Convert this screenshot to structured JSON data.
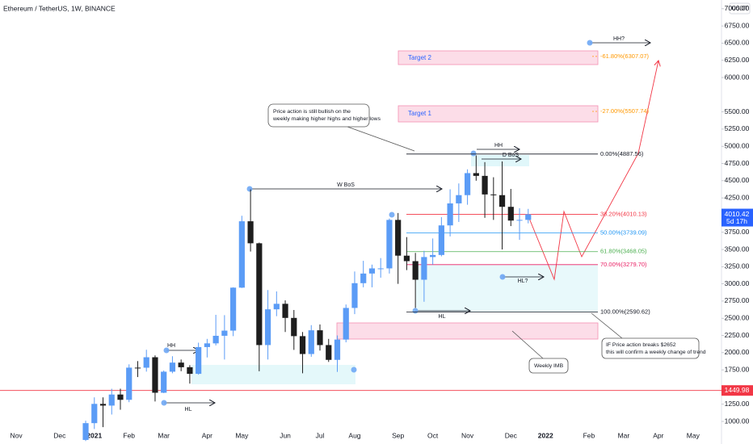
{
  "chart_data": {
    "type": "candlestick",
    "title": "Ethereum / TetherUS, 1W, BINANCE",
    "currency": "USDT",
    "categories": [
      null,
      "Nov",
      null,
      null,
      null,
      null,
      "Dec",
      null,
      null,
      null,
      "2021",
      null,
      null,
      null,
      "Feb",
      null,
      null,
      null,
      "Mar",
      null,
      null,
      null,
      null,
      "Apr",
      null,
      null,
      null,
      "May",
      null,
      null,
      null,
      null,
      "Jun",
      null,
      null,
      null,
      "Jul",
      null,
      null,
      null,
      "Aug",
      null,
      null,
      null,
      null,
      "Sep",
      null,
      null,
      null,
      "Oct",
      null,
      null,
      null,
      "Nov",
      null,
      null,
      null,
      null,
      "Dec",
      null,
      null,
      null,
      "2022",
      null,
      null,
      null,
      null,
      "Feb",
      null,
      null,
      null,
      "Mar",
      null,
      null,
      null,
      "Apr",
      null,
      null,
      null,
      "May",
      null,
      null,
      null
    ],
    "open": [
      null,
      null,
      null,
      null,
      null,
      null,
      null,
      null,
      null,
      731,
      975,
      1255,
      1230,
      1391,
      1314,
      1782,
      1781,
      1933,
      1417,
      1723,
      1855,
      1788,
      1692,
      2081,
      2135,
      2245,
      2320,
      2945,
      3910,
      3590,
      2110,
      2630,
      2710,
      2505,
      2240,
      1980,
      2325,
      2110,
      1895,
      2190,
      2650,
      3010,
      3150,
      3225,
      3225,
      3930,
      3410,
      3330,
      3060,
      3390,
      3420,
      3850,
      4170,
      4290,
      4610,
      4570,
      4300,
      4290,
      4120,
      3920,
      3930,
      null,
      null,
      null,
      null,
      null,
      null,
      null,
      null,
      null,
      null,
      null,
      null,
      null,
      null,
      null,
      null,
      null,
      null,
      null,
      null,
      null,
      null
    ],
    "high": [
      null,
      null,
      null,
      null,
      null,
      null,
      null,
      null,
      null,
      1011,
      1350,
      1350,
      1475,
      1476,
      1830,
      1877,
      2042,
      1960,
      1740,
      1948,
      1900,
      1818,
      2145,
      2200,
      2550,
      2545,
      2950,
      3990,
      4372,
      3600,
      2910,
      2890,
      2760,
      2620,
      2300,
      2400,
      2410,
      2200,
      2250,
      2700,
      3180,
      3335,
      3280,
      3375,
      3950,
      4030,
      3680,
      3450,
      3480,
      3660,
      3970,
      4375,
      4460,
      4665,
      4868,
      4770,
      4550,
      4780,
      4380,
      4100,
      4090,
      null,
      null,
      null,
      null,
      null,
      null,
      null,
      null,
      null,
      null,
      null,
      null,
      null,
      null,
      null,
      null,
      null,
      null,
      null,
      null,
      null,
      null
    ],
    "low": [
      null,
      null,
      null,
      null,
      null,
      null,
      null,
      null,
      null,
      715,
      890,
      917,
      1100,
      1170,
      1280,
      1645,
      1724,
      1290,
      1412,
      1700,
      1730,
      1550,
      1680,
      1930,
      2105,
      1900,
      2240,
      2940,
      3470,
      1730,
      1900,
      2530,
      2300,
      2040,
      1700,
      1940,
      2030,
      1865,
      1720,
      2150,
      2560,
      2950,
      2950,
      3090,
      3150,
      3000,
      3200,
      2650,
      2740,
      3280,
      3400,
      3690,
      3900,
      4150,
      4500,
      3960,
      3930,
      3500,
      3840,
      3640,
      3880,
      null,
      null,
      null,
      null,
      null,
      null,
      null,
      null,
      null,
      null,
      null,
      null,
      null,
      null,
      null,
      null,
      null,
      null,
      null,
      null,
      null,
      null
    ],
    "close": [
      null,
      null,
      null,
      null,
      null,
      null,
      null,
      null,
      null,
      975,
      1255,
      1230,
      1391,
      1314,
      1782,
      1781,
      1933,
      1417,
      1723,
      1855,
      1788,
      1692,
      2081,
      2135,
      2245,
      2320,
      2945,
      3910,
      3590,
      2110,
      2630,
      2710,
      2505,
      2240,
      1980,
      2325,
      2110,
      1895,
      2190,
      2650,
      3010,
      3150,
      3225,
      3225,
      3930,
      3410,
      3330,
      3060,
      3390,
      3420,
      3850,
      4170,
      4290,
      4610,
      4570,
      4300,
      4290,
      4120,
      3920,
      3930,
      4010.42,
      null,
      null,
      null,
      null,
      null,
      null,
      null,
      null,
      null,
      null,
      null,
      null,
      null,
      null,
      null,
      null,
      null,
      null,
      null,
      null,
      null,
      null
    ],
    "up_color": "#5b9cf6",
    "down_color": "#1e1e1e",
    "ylim": [
      883,
      7127
    ],
    "yticks": [
      {
        "value": 1000,
        "label": "1000.00"
      },
      {
        "value": 1250,
        "label": "1250.00"
      },
      {
        "value": 1750,
        "label": "1750.00"
      },
      {
        "value": 2000,
        "label": "2000.00"
      },
      {
        "value": 2250,
        "label": "2250.00"
      },
      {
        "value": 2500,
        "label": "2500.00"
      },
      {
        "value": 2750,
        "label": "2750.00"
      },
      {
        "value": 3000,
        "label": "3000.00"
      },
      {
        "value": 3250,
        "label": "3250.00"
      },
      {
        "value": 3500,
        "label": "3500.00"
      },
      {
        "value": 3750,
        "label": "3750.00"
      },
      {
        "value": 4250,
        "label": "4250.00"
      },
      {
        "value": 4500,
        "label": "4500.00"
      },
      {
        "value": 4750,
        "label": "4750.00"
      },
      {
        "value": 5000,
        "label": "5000.00"
      },
      {
        "value": 5250,
        "label": "5250.00"
      },
      {
        "value": 5500,
        "label": "5500.00"
      },
      {
        "value": 6000,
        "label": "6000.00"
      },
      {
        "value": 6250,
        "label": "6250.00"
      },
      {
        "value": 6500,
        "label": "6500.00"
      },
      {
        "value": 6750,
        "label": "6750.00"
      },
      {
        "value": 7000,
        "label": "7000.00"
      }
    ],
    "last_price": 4010.42,
    "countdown": "5d 17h",
    "last_price_color": "#2962ff",
    "alert_level": 1449.98,
    "alert_color": "#f23645",
    "fib_levels": [
      {
        "label": "0.00%(4887.56)",
        "price": 4887.56,
        "color": "#131722"
      },
      {
        "label": "38.20%(4010.13)",
        "price": 4010.13,
        "color": "#f23645"
      },
      {
        "label": "50.00%(3739.09)",
        "price": 3739.09,
        "color": "#2196f3"
      },
      {
        "label": "61.80%(3468.05)",
        "price": 3468.05,
        "color": "#4caf50"
      },
      {
        "label": "70.00%(3279.70)",
        "price": 3279.7,
        "color": "#e91e63"
      },
      {
        "label": "100.00%(2590.62)",
        "price": 2590.62,
        "color": "#131722"
      },
      {
        "label": "-27.00%(5507.74)",
        "price": 5507.74,
        "color": "#ff9800"
      },
      {
        "label": "-61.80%(6307.07)",
        "price": 6307.07,
        "color": "#ff9800"
      }
    ],
    "zone_labels": [
      "Target 1",
      "Target 2"
    ],
    "markers": [
      "HH?",
      "HH",
      "D BoS",
      "W BoS",
      "HH",
      "HL",
      "HL?",
      "HL"
    ],
    "notes": [
      [
        "Price action is still bullish on the",
        "weekly making higher highs and higher lows"
      ],
      [
        "IF Price action breaks $2652",
        "this will confirm a weekly change of trend"
      ],
      [
        "Weekly IMB"
      ]
    ]
  }
}
